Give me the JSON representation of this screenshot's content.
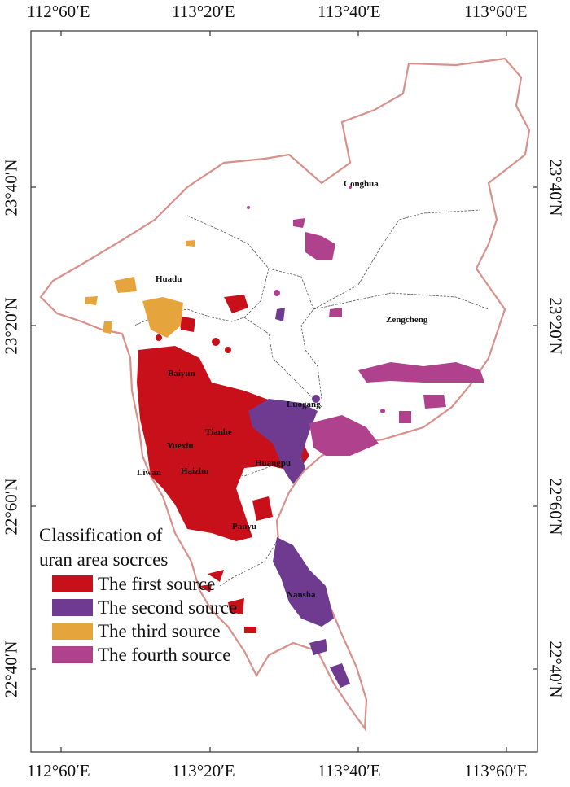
{
  "map": {
    "lon_ticks": [
      "112°60′E",
      "113°20′E",
      "113°40′E",
      "113°60′E"
    ],
    "lat_ticks": [
      "23°40′N",
      "23°20′N",
      "22°60′N",
      "22°40′N"
    ],
    "districts": [
      "Conghua",
      "Huadu",
      "Zengcheng",
      "Baiyun",
      "Luogang",
      "Tianhe",
      "Yuexiu",
      "Liwan",
      "Haizhu",
      "Huangpu",
      "Panyu",
      "Nansha"
    ],
    "legend": {
      "title_line1": "Classification of",
      "title_line2": "uran area socrces",
      "items": [
        {
          "label": "The first source",
          "color": "#c8101a"
        },
        {
          "label": "The second source",
          "color": "#6e3b91"
        },
        {
          "label": "The third source",
          "color": "#e6a43c"
        },
        {
          "label": "The fourth source",
          "color": "#b0418c"
        }
      ]
    },
    "colors": {
      "boundary": "#d9908a",
      "inner_boundary": "#555555",
      "frame": "#333333"
    }
  }
}
